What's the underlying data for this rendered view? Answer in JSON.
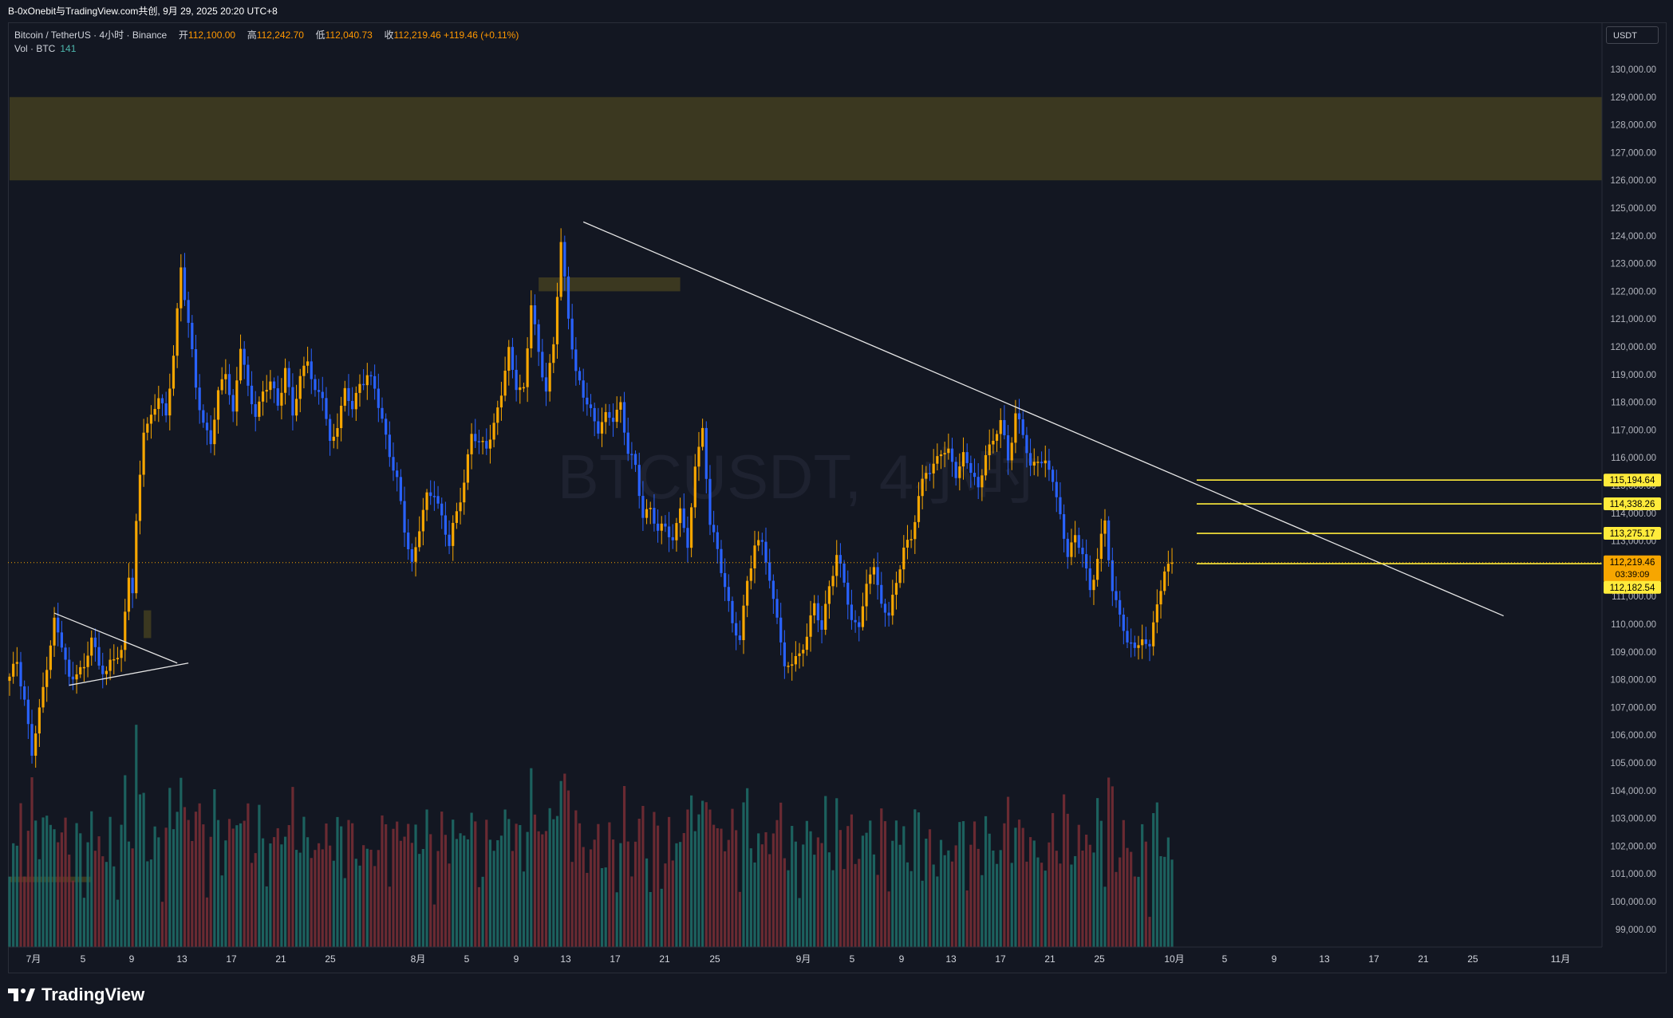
{
  "header": {
    "share_text": "B-0xOnebit与TradingView.com共创, 9月 29, 2025 20:20 UTC+8"
  },
  "legend": {
    "symbol": "Bitcoin / TetherUS · 4小时 · Binance",
    "open_label": "开",
    "open": "112,100.00",
    "high_label": "高",
    "high": "112,242.70",
    "low_label": "低",
    "low": "112,040.73",
    "close_label": "收",
    "close": "112,219.46",
    "change": "+119.46 (+0.11%)",
    "vol_label": "Vol · BTC",
    "vol_value": "141"
  },
  "currency_button": "USDT",
  "watermark": "BTCUSDT, 4小时",
  "footer": {
    "brand": "TradingView"
  },
  "colors": {
    "background": "#131722",
    "up": "#f7a600",
    "down": "#2962ff",
    "level_line": "#ffeb3b",
    "zone": "#4a4420",
    "vol_up": "#1f6f68",
    "vol_down": "#7a2e35"
  },
  "chart_data": {
    "type": "candlestick",
    "symbol": "BTCUSDT",
    "interval": "4h",
    "ylim": [
      98000,
      133000
    ],
    "y_ticks": [
      99000,
      100000,
      101000,
      102000,
      103000,
      104000,
      105000,
      106000,
      107000,
      108000,
      109000,
      110000,
      111000,
      112000,
      113000,
      114000,
      115000,
      116000,
      117000,
      118000,
      119000,
      120000,
      121000,
      122000,
      123000,
      124000,
      125000,
      126000,
      127000,
      128000,
      129000,
      130000
    ],
    "x_ticks": [
      "7月",
      "5",
      "9",
      "13",
      "17",
      "21",
      "25",
      "8月",
      "5",
      "9",
      "13",
      "17",
      "21",
      "25",
      "9月",
      "5",
      "9",
      "13",
      "17",
      "21",
      "25",
      "10月",
      "5",
      "9",
      "13",
      "17",
      "21",
      "25",
      "11月"
    ],
    "price_path": [
      [
        0,
        108000
      ],
      [
        2,
        108700
      ],
      [
        4,
        107300
      ],
      [
        6,
        105300
      ],
      [
        8,
        106800
      ],
      [
        10,
        108600
      ],
      [
        12,
        110100
      ],
      [
        14,
        109200
      ],
      [
        16,
        108000
      ],
      [
        18,
        108400
      ],
      [
        20,
        108300
      ],
      [
        22,
        109500
      ],
      [
        24,
        108600
      ],
      [
        26,
        108300
      ],
      [
        28,
        108700
      ],
      [
        30,
        109000
      ],
      [
        32,
        111900
      ],
      [
        33,
        111200
      ],
      [
        34,
        113500
      ],
      [
        36,
        117000
      ],
      [
        38,
        117500
      ],
      [
        40,
        118300
      ],
      [
        42,
        117300
      ],
      [
        44,
        119800
      ],
      [
        46,
        122900
      ],
      [
        48,
        120800
      ],
      [
        50,
        118500
      ],
      [
        52,
        117300
      ],
      [
        54,
        116600
      ],
      [
        56,
        118200
      ],
      [
        58,
        119200
      ],
      [
        60,
        117600
      ],
      [
        62,
        120000
      ],
      [
        64,
        118400
      ],
      [
        66,
        117700
      ],
      [
        68,
        118300
      ],
      [
        70,
        118700
      ],
      [
        72,
        117900
      ],
      [
        74,
        119300
      ],
      [
        76,
        117500
      ],
      [
        78,
        118800
      ],
      [
        80,
        119700
      ],
      [
        82,
        118300
      ],
      [
        84,
        118200
      ],
      [
        86,
        116500
      ],
      [
        88,
        117300
      ],
      [
        90,
        118300
      ],
      [
        92,
        117800
      ],
      [
        94,
        118700
      ],
      [
        96,
        119000
      ],
      [
        98,
        118400
      ],
      [
        100,
        117400
      ],
      [
        102,
        116200
      ],
      [
        104,
        115100
      ],
      [
        106,
        113400
      ],
      [
        108,
        112200
      ],
      [
        110,
        113500
      ],
      [
        112,
        114500
      ],
      [
        114,
        114800
      ],
      [
        116,
        113900
      ],
      [
        118,
        112800
      ],
      [
        120,
        114000
      ],
      [
        122,
        115200
      ],
      [
        124,
        116900
      ],
      [
        126,
        116400
      ],
      [
        128,
        116500
      ],
      [
        130,
        117200
      ],
      [
        132,
        118300
      ],
      [
        134,
        119800
      ],
      [
        136,
        118700
      ],
      [
        138,
        118400
      ],
      [
        140,
        121500
      ],
      [
        142,
        119800
      ],
      [
        144,
        118500
      ],
      [
        146,
        120000
      ],
      [
        148,
        123700
      ],
      [
        150,
        121200
      ],
      [
        152,
        119000
      ],
      [
        154,
        118200
      ],
      [
        156,
        117700
      ],
      [
        158,
        117100
      ],
      [
        160,
        117400
      ],
      [
        162,
        117400
      ],
      [
        164,
        118000
      ],
      [
        166,
        116200
      ],
      [
        168,
        115600
      ],
      [
        170,
        113900
      ],
      [
        172,
        114300
      ],
      [
        174,
        113200
      ],
      [
        176,
        113600
      ],
      [
        178,
        113000
      ],
      [
        180,
        114300
      ],
      [
        182,
        112500
      ],
      [
        184,
        115900
      ],
      [
        186,
        117000
      ],
      [
        188,
        113600
      ],
      [
        190,
        112600
      ],
      [
        192,
        111500
      ],
      [
        194,
        110000
      ],
      [
        196,
        109300
      ],
      [
        198,
        111700
      ],
      [
        200,
        112800
      ],
      [
        202,
        113000
      ],
      [
        204,
        111400
      ],
      [
        206,
        110500
      ],
      [
        208,
        108300
      ],
      [
        210,
        108600
      ],
      [
        212,
        108900
      ],
      [
        214,
        109700
      ],
      [
        216,
        110600
      ],
      [
        218,
        109800
      ],
      [
        220,
        111500
      ],
      [
        222,
        112400
      ],
      [
        224,
        111500
      ],
      [
        226,
        110100
      ],
      [
        228,
        110100
      ],
      [
        230,
        111200
      ],
      [
        232,
        112200
      ],
      [
        234,
        110700
      ],
      [
        236,
        110400
      ],
      [
        238,
        111300
      ],
      [
        240,
        112900
      ],
      [
        242,
        113100
      ],
      [
        244,
        114500
      ],
      [
        246,
        115500
      ],
      [
        248,
        115800
      ],
      [
        250,
        116200
      ],
      [
        252,
        116100
      ],
      [
        254,
        115500
      ],
      [
        256,
        116100
      ],
      [
        258,
        115500
      ],
      [
        260,
        114800
      ],
      [
        262,
        116300
      ],
      [
        264,
        116500
      ],
      [
        266,
        117300
      ],
      [
        268,
        116000
      ],
      [
        270,
        117600
      ],
      [
        272,
        116800
      ],
      [
        274,
        115600
      ],
      [
        276,
        116100
      ],
      [
        278,
        115700
      ],
      [
        280,
        115200
      ],
      [
        282,
        113900
      ],
      [
        284,
        112600
      ],
      [
        286,
        113000
      ],
      [
        288,
        112600
      ],
      [
        290,
        111300
      ],
      [
        292,
        112300
      ],
      [
        294,
        113700
      ],
      [
        296,
        111200
      ],
      [
        298,
        110500
      ],
      [
        300,
        109100
      ],
      [
        302,
        109300
      ],
      [
        304,
        109400
      ],
      [
        306,
        109300
      ],
      [
        308,
        110500
      ],
      [
        310,
        112100
      ],
      [
        312,
        112219
      ]
    ],
    "levels": [
      {
        "name": "resistance-1",
        "value": 115194.64,
        "label": "115,194.64"
      },
      {
        "name": "resistance-2",
        "value": 114338.26,
        "label": "114,338.26"
      },
      {
        "name": "resistance-3",
        "value": 113275.17,
        "label": "113,275.17"
      },
      {
        "name": "support",
        "value": 112182.54,
        "label": "112,182.54"
      }
    ],
    "last_price": {
      "value": 112219.46,
      "label": "112,219.46",
      "countdown": "03:39:09"
    },
    "zones": [
      {
        "name": "supply-zone-top",
        "from_bar": 0,
        "to_bar": 430,
        "y_low": 126000,
        "y_high": 129000
      },
      {
        "name": "zone-mid",
        "from_bar": 142,
        "to_bar": 180,
        "y_low": 122000,
        "y_high": 122500
      },
      {
        "name": "zone-small",
        "from_bar": 36,
        "to_bar": 38,
        "y_low": 109500,
        "y_high": 110500
      },
      {
        "name": "zone-bottom-left",
        "from_bar": 0,
        "to_bar": 22,
        "y_low": 100700,
        "y_high": 100900
      }
    ],
    "trendlines": [
      {
        "name": "main-downtrend",
        "from": [
          154,
          124500
        ],
        "to": [
          401,
          110300
        ]
      },
      {
        "name": "triangle-upper",
        "from": [
          12,
          110400
        ],
        "to": [
          45,
          108600
        ]
      },
      {
        "name": "triangle-lower",
        "from": [
          16,
          107800
        ],
        "to": [
          48,
          108600
        ]
      }
    ]
  }
}
